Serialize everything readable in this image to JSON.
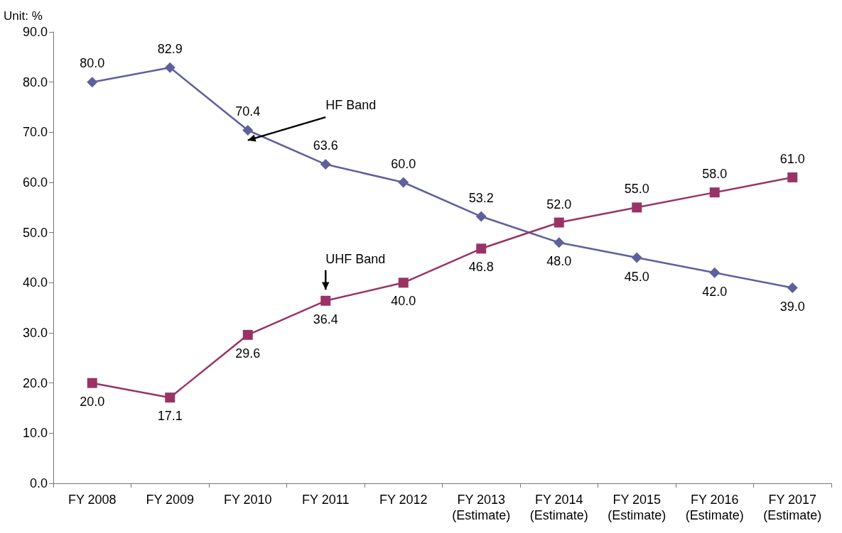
{
  "chart_data": {
    "type": "line",
    "ylabel": "Unit: %",
    "categories": [
      "FY 2008",
      "FY 2009",
      "FY 2010",
      "FY 2011",
      "FY 2012",
      "FY 2013\n(Estimate)",
      "FY 2014\n(Estimate)",
      "FY 2015\n(Estimate)",
      "FY 2016\n(Estimate)",
      "FY 2017\n(Estimate)"
    ],
    "series": [
      {
        "name": "HF Band",
        "color": "#5f5f9e",
        "marker": "diamond",
        "values": [
          80.0,
          82.9,
          70.4,
          63.6,
          60.0,
          53.2,
          48.0,
          45.0,
          42.0,
          39.0
        ],
        "value_labels": [
          "80.0",
          "82.9",
          "70.4",
          "63.6",
          "60.0",
          "53.2",
          "48.0",
          "45.0",
          "42.0",
          "39.0"
        ]
      },
      {
        "name": "UHF Band",
        "color": "#993366",
        "marker": "square",
        "values": [
          20.0,
          17.1,
          29.6,
          36.4,
          40.0,
          46.8,
          52.0,
          55.0,
          58.0,
          61.0
        ],
        "value_labels": [
          "20.0",
          "17.1",
          "29.6",
          "36.4",
          "40.0",
          "46.8",
          "52.0",
          "55.0",
          "58.0",
          "61.0"
        ]
      }
    ],
    "ylim": [
      0,
      90
    ],
    "yticks": [
      {
        "value": 0,
        "label": "0.0"
      },
      {
        "value": 10,
        "label": "10.0"
      },
      {
        "value": 20,
        "label": "20.0"
      },
      {
        "value": 30,
        "label": "30.0"
      },
      {
        "value": 40,
        "label": "40.0"
      },
      {
        "value": 50,
        "label": "50.0"
      },
      {
        "value": 60,
        "label": "60.0"
      },
      {
        "value": 70,
        "label": "70.0"
      },
      {
        "value": 80,
        "label": "80.0"
      },
      {
        "value": 90,
        "label": "90.0"
      }
    ],
    "grid": false
  }
}
